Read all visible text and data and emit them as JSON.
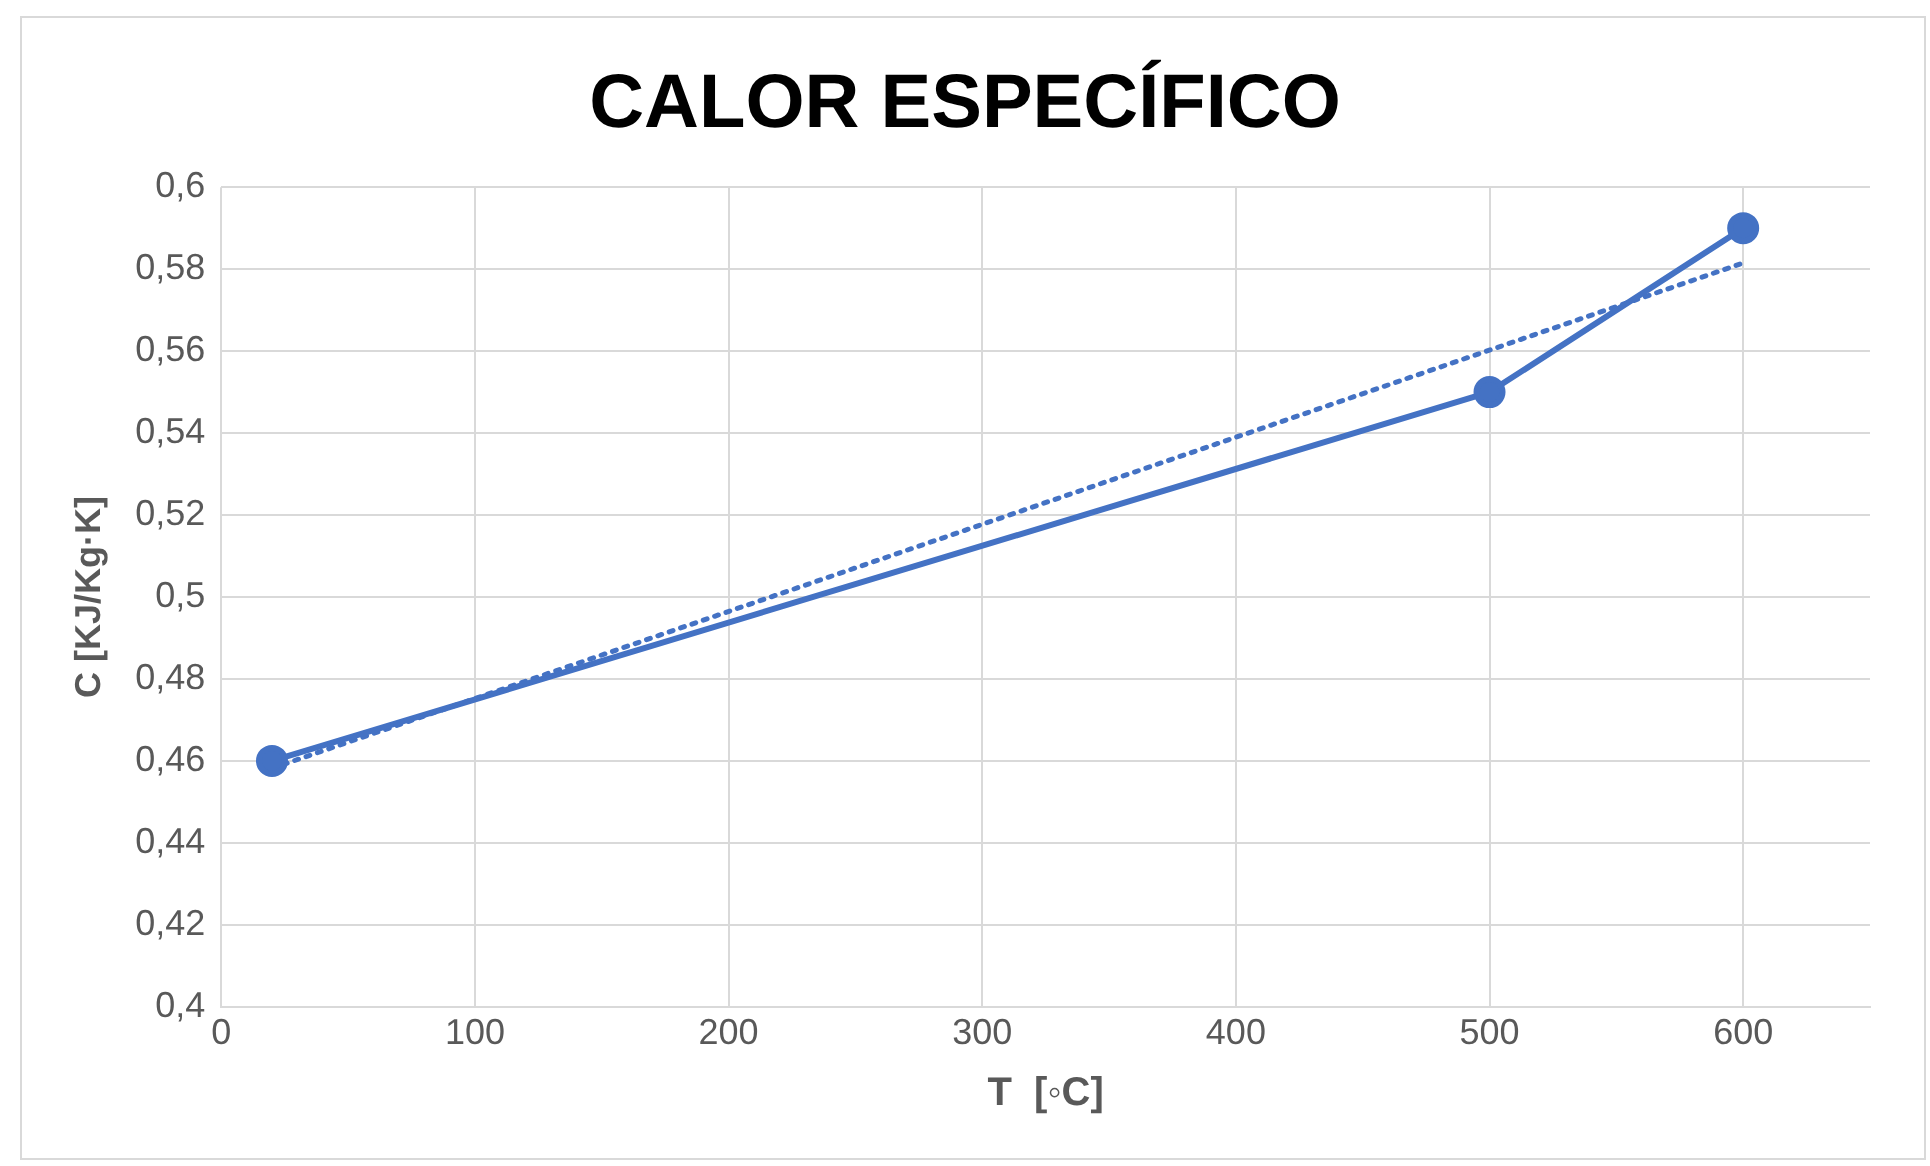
{
  "chart_data": {
    "type": "line",
    "title": "CALOR ESPECÍFICO",
    "xlabel": "T  [◦C]",
    "ylabel": "C [KJ/Kg·K]",
    "x": [
      20,
      500,
      600
    ],
    "series": [
      {
        "color": "#4472c4",
        "values": [
          0.46,
          0.55,
          0.59
        ],
        "marker": "circle",
        "line_style": "solid"
      },
      {
        "type": "line",
        "color": "#4472c4",
        "x": [
          20,
          600
        ],
        "values": [
          0.4582,
          0.5815
        ],
        "marker": "none",
        "line_style": "dotted"
      }
    ],
    "xlim": [
      0,
      650
    ],
    "xticks": [
      0,
      100,
      200,
      300,
      400,
      500,
      600
    ],
    "ylim": [
      0.4,
      0.6
    ],
    "yticks": [
      {
        "value": 0.4,
        "label": "0,4"
      },
      {
        "value": 0.42,
        "label": "0,42"
      },
      {
        "value": 0.44,
        "label": "0,44"
      },
      {
        "value": 0.46,
        "label": "0,46"
      },
      {
        "value": 0.48,
        "label": "0,48"
      },
      {
        "value": 0.5,
        "label": "0,5"
      },
      {
        "value": 0.52,
        "label": "0,52"
      },
      {
        "value": 0.54,
        "label": "0,54"
      },
      {
        "value": 0.56,
        "label": "0,56"
      },
      {
        "value": 0.58,
        "label": "0,58"
      },
      {
        "value": 0.6,
        "label": "0,6"
      }
    ],
    "grid": true,
    "legend": false
  }
}
